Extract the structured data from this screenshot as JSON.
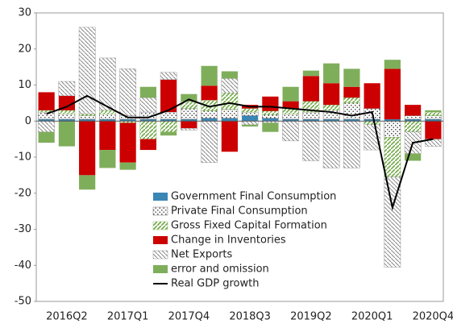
{
  "chart_data": {
    "type": "bar",
    "stacked": true,
    "categories": [
      null,
      "2016Q2",
      null,
      null,
      "2017Q1",
      null,
      null,
      "2017Q4",
      null,
      null,
      "2018Q3",
      null,
      null,
      "2019Q2",
      null,
      null,
      "2020Q1",
      null,
      null,
      "2020Q4"
    ],
    "series": [
      {
        "name": "Government Final Consumption",
        "color": "#3a86b4",
        "pattern": "solid",
        "values": [
          0.5,
          0.5,
          0.5,
          0.5,
          0.5,
          0.5,
          0.5,
          0.5,
          0.8,
          0.8,
          1.5,
          0.8,
          0.5,
          0.5,
          0.5,
          0.5,
          0.5,
          0.5,
          0.5,
          0.5
        ]
      },
      {
        "name": "Private Final Consumption",
        "color": "#555555",
        "pattern": "dots",
        "values": [
          2,
          1.5,
          1,
          1.5,
          1,
          2,
          2,
          3,
          2,
          2.5,
          1,
          1,
          1.5,
          2,
          2.5,
          4.5,
          3,
          -4.5,
          1,
          1
        ]
      },
      {
        "name": "Gross Fixed Capital Formation",
        "color": "#70a845",
        "pattern": "hatch",
        "values": [
          0.5,
          1,
          0.5,
          1,
          -0.5,
          -5,
          -3,
          2,
          3,
          4.5,
          1,
          1,
          1.5,
          3,
          1.5,
          1.5,
          -1,
          -11,
          -3,
          1
        ]
      },
      {
        "name": "Change in Inventories",
        "color": "#cc0000",
        "pattern": "solid",
        "values": [
          5,
          4,
          -15,
          -8,
          -11,
          -3,
          9,
          -2,
          4,
          -8.5,
          1,
          4,
          2,
          7,
          6,
          3,
          7,
          14,
          3,
          -5
        ]
      },
      {
        "name": "Net Exports",
        "color": "#888888",
        "pattern": "diag",
        "values": [
          -3,
          4,
          24,
          14.5,
          13,
          4,
          2,
          -0.5,
          -11.5,
          4,
          -1,
          -0.5,
          -5.5,
          -11,
          -13,
          -13,
          -7,
          -25,
          -6,
          -2
        ]
      },
      {
        "name": "error and omission",
        "color": "#7fae5b",
        "pattern": "solid",
        "values": [
          -3,
          -7,
          -4,
          -5,
          -2,
          3,
          -1,
          2,
          5.5,
          2,
          -0.5,
          -2.5,
          4,
          1.5,
          5.5,
          5,
          0,
          2.5,
          -2,
          0.5
        ]
      },
      {
        "name": "Real GDP growth",
        "color": "#000000",
        "type": "line",
        "values": [
          2,
          4,
          7,
          4,
          1,
          1,
          3,
          6,
          4,
          5,
          4,
          4,
          3.5,
          3,
          2.5,
          1.5,
          2.5,
          -24,
          -6,
          -5
        ]
      }
    ],
    "ylim": [
      -50,
      30
    ],
    "yticks": [
      -50,
      -40,
      -30,
      -20,
      -10,
      0,
      10,
      20,
      30
    ]
  }
}
